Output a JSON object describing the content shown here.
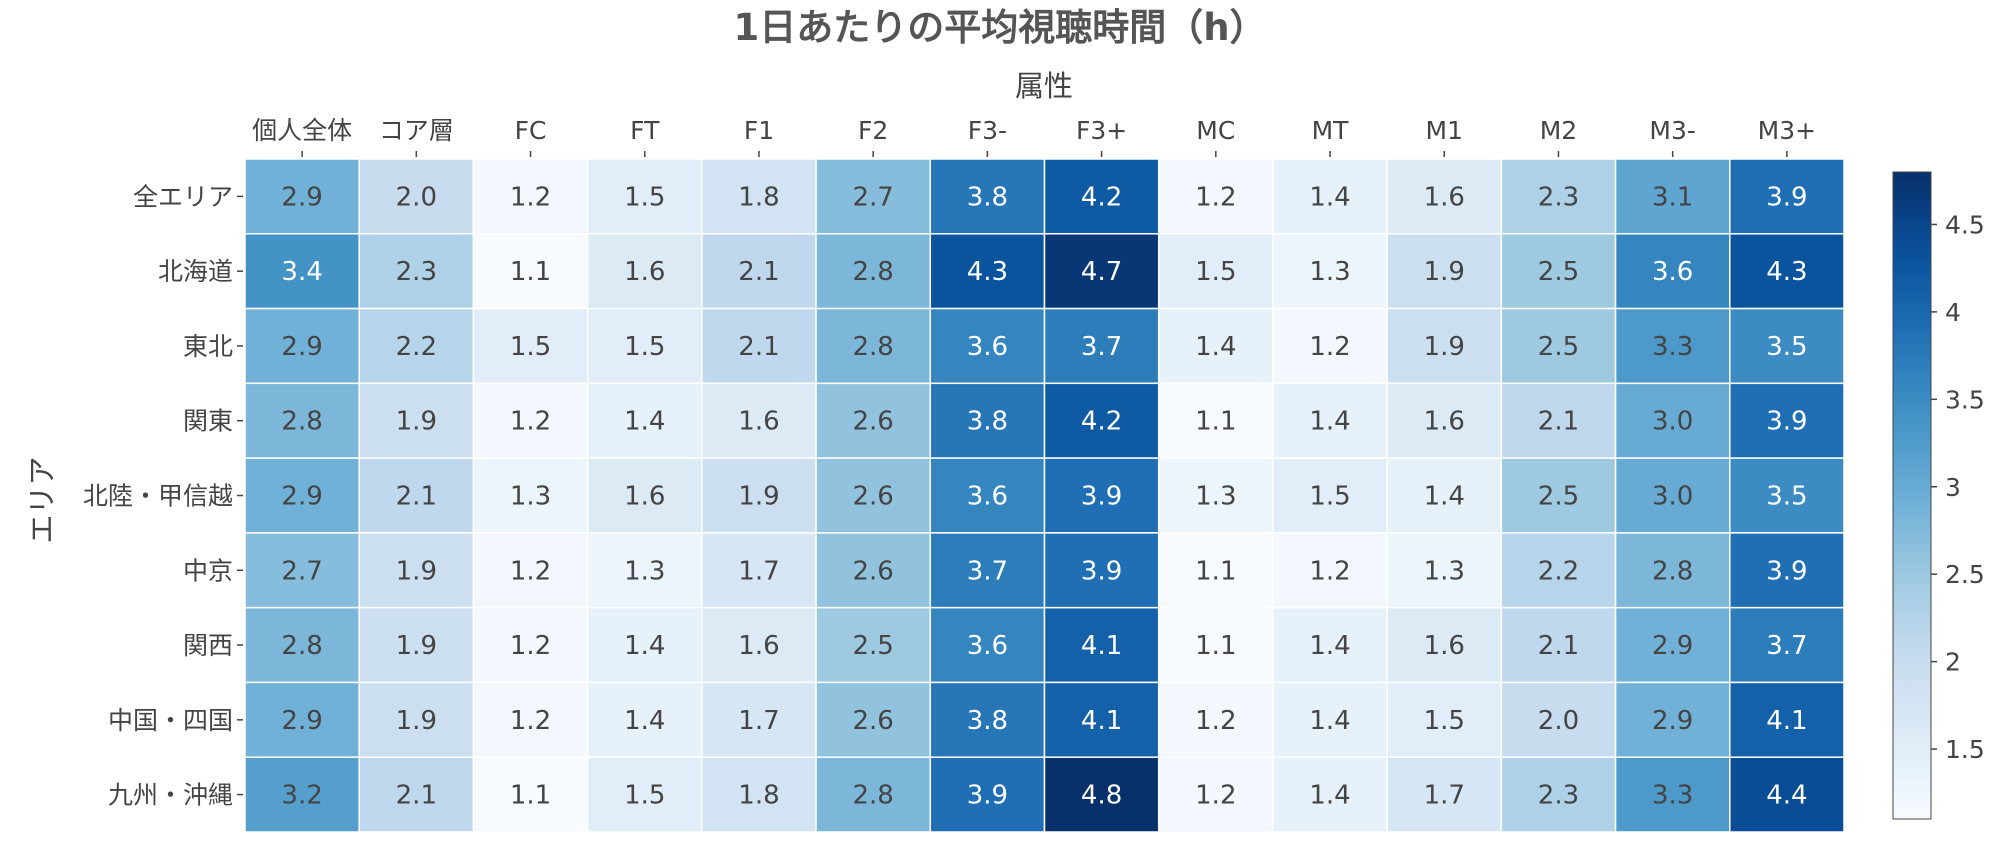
{
  "chart_data": {
    "type": "heatmap",
    "title": "1日あたりの平均視聴時間（h）",
    "xlabel": "属性",
    "ylabel": "エリア",
    "x_categories": [
      "個人全体",
      "コア層",
      "FC",
      "FT",
      "F1",
      "F2",
      "F3-",
      "F3+",
      "MC",
      "MT",
      "M1",
      "M2",
      "M3-",
      "M3+"
    ],
    "y_categories": [
      "全エリア",
      "北海道",
      "東北",
      "関東",
      "北陸・甲信越",
      "中京",
      "関西",
      "中国・四国",
      "九州・沖縄"
    ],
    "values": [
      [
        2.9,
        2.0,
        1.2,
        1.5,
        1.8,
        2.7,
        3.8,
        4.2,
        1.2,
        1.4,
        1.6,
        2.3,
        3.1,
        3.9
      ],
      [
        3.4,
        2.3,
        1.1,
        1.6,
        2.1,
        2.8,
        4.3,
        4.7,
        1.5,
        1.3,
        1.9,
        2.5,
        3.6,
        4.3
      ],
      [
        2.9,
        2.2,
        1.5,
        1.5,
        2.1,
        2.8,
        3.6,
        3.7,
        1.4,
        1.2,
        1.9,
        2.5,
        3.3,
        3.5
      ],
      [
        2.8,
        1.9,
        1.2,
        1.4,
        1.6,
        2.6,
        3.8,
        4.2,
        1.1,
        1.4,
        1.6,
        2.1,
        3.0,
        3.9
      ],
      [
        2.9,
        2.1,
        1.3,
        1.6,
        1.9,
        2.6,
        3.6,
        3.9,
        1.3,
        1.5,
        1.4,
        2.5,
        3.0,
        3.5
      ],
      [
        2.7,
        1.9,
        1.2,
        1.3,
        1.7,
        2.6,
        3.7,
        3.9,
        1.1,
        1.2,
        1.3,
        2.2,
        2.8,
        3.9
      ],
      [
        2.8,
        1.9,
        1.2,
        1.4,
        1.6,
        2.5,
        3.6,
        4.1,
        1.1,
        1.4,
        1.6,
        2.1,
        2.9,
        3.7
      ],
      [
        2.9,
        1.9,
        1.2,
        1.4,
        1.7,
        2.6,
        3.8,
        4.1,
        1.2,
        1.4,
        1.5,
        2.0,
        2.9,
        4.1
      ],
      [
        3.2,
        2.1,
        1.1,
        1.5,
        1.8,
        2.8,
        3.9,
        4.8,
        1.2,
        1.4,
        1.7,
        2.3,
        3.3,
        4.4
      ]
    ],
    "colorscale": "Blues",
    "color_range": [
      1.1,
      4.8
    ],
    "colorbar_ticks": [
      1.5,
      2,
      2.5,
      3,
      3.5,
      4,
      4.5
    ],
    "colorbar_position": "right",
    "x_axis_position": "top",
    "grid": false
  }
}
